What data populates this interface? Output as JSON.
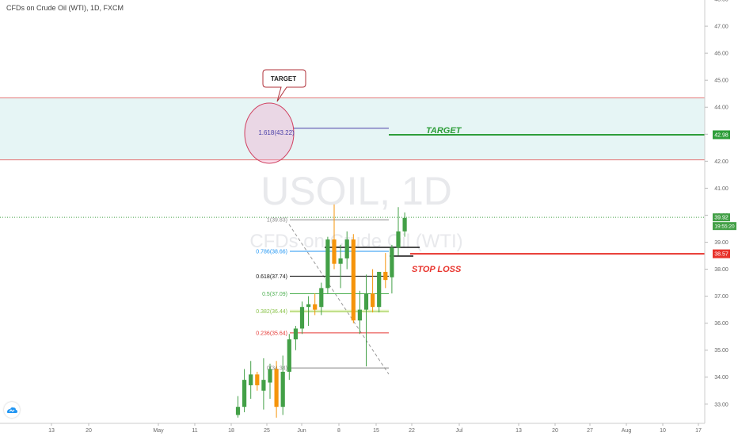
{
  "header": {
    "title": "CFDs on Crude Oil (WTI), 1D, FXCM"
  },
  "watermark": {
    "symbol": "USOIL, 1D",
    "description": "CFDs on Crude Oil (WTI)"
  },
  "price_axis": {
    "ticks": [
      "48.00",
      "47.00",
      "46.00",
      "45.00",
      "44.00",
      "43.00",
      "42.00",
      "41.00",
      "40.00",
      "39.00",
      "38.00",
      "37.00",
      "36.00",
      "35.00",
      "34.00",
      "33.00"
    ],
    "target_badge": "42.98",
    "last_price_badge": "39.92",
    "countdown_badge": "19:55:20",
    "stop_badge": "38.57"
  },
  "time_axis": {
    "ticks": [
      "13",
      "20",
      "May",
      "11",
      "18",
      "25",
      "Jun",
      "8",
      "15",
      "22",
      "Jul",
      "13",
      "20",
      "27",
      "Aug",
      "10",
      "17"
    ]
  },
  "annotations": {
    "target_callout": "TARGET",
    "target_line_label": "TARGET",
    "stop_loss_label": "STOP LOSS",
    "fib_ext": "1.618(43.22)",
    "fib_levels": [
      "1(39.83)",
      "0.786(38.66)",
      "0.618(37.74)",
      "0.5(37.09)",
      "0.382(36.44)",
      "0.236(35.64)",
      "0(34.34)"
    ]
  },
  "colors": {
    "up": "#43a047",
    "down": "#f5940b",
    "target_green": "#2e9e3a",
    "stop_red": "#e8322b",
    "zone_fill": "#e6f5f5",
    "zone_border": "#e57373"
  },
  "chart_data": {
    "type": "candlestick",
    "title": "CFDs on Crude Oil (WTI), 1D, FXCM",
    "y_range": [
      32.7,
      48.1
    ],
    "levels": {
      "target": 42.98,
      "last_price": 39.92,
      "stop_loss": 38.57,
      "fib_1_618": 43.22,
      "zone_top": 44.35,
      "zone_bottom": 42.05
    },
    "fibonacci": [
      {
        "ratio": "1",
        "price": 39.83
      },
      {
        "ratio": "0.786",
        "price": 38.66
      },
      {
        "ratio": "0.618",
        "price": 37.74
      },
      {
        "ratio": "0.5",
        "price": 37.09
      },
      {
        "ratio": "0.382",
        "price": 36.44
      },
      {
        "ratio": "0.236",
        "price": 35.64
      },
      {
        "ratio": "0",
        "price": 34.34
      }
    ],
    "candles": [
      {
        "o": 32.6,
        "h": 33.3,
        "l": 32.5,
        "c": 32.9
      },
      {
        "o": 32.9,
        "h": 34.3,
        "l": 32.7,
        "c": 33.9
      },
      {
        "o": 33.7,
        "h": 34.6,
        "l": 33.2,
        "c": 34.1
      },
      {
        "o": 34.1,
        "h": 34.2,
        "l": 33.5,
        "c": 33.7
      },
      {
        "o": 33.5,
        "h": 34.7,
        "l": 32.8,
        "c": 33.9
      },
      {
        "o": 33.8,
        "h": 34.5,
        "l": 33.2,
        "c": 34.3
      },
      {
        "o": 34.3,
        "h": 34.6,
        "l": 32.5,
        "c": 32.9
      },
      {
        "o": 32.9,
        "h": 34.8,
        "l": 32.6,
        "c": 34.2
      },
      {
        "o": 34.2,
        "h": 35.6,
        "l": 33.9,
        "c": 35.4
      },
      {
        "o": 35.4,
        "h": 35.9,
        "l": 35.0,
        "c": 35.8
      },
      {
        "o": 35.8,
        "h": 36.8,
        "l": 35.6,
        "c": 36.6
      },
      {
        "o": 36.6,
        "h": 37.0,
        "l": 35.9,
        "c": 36.7
      },
      {
        "o": 36.7,
        "h": 37.1,
        "l": 36.3,
        "c": 36.5
      },
      {
        "o": 36.6,
        "h": 37.5,
        "l": 36.3,
        "c": 37.3
      },
      {
        "o": 37.3,
        "h": 39.2,
        "l": 37.1,
        "c": 39.1
      },
      {
        "o": 39.1,
        "h": 40.4,
        "l": 38.0,
        "c": 38.2
      },
      {
        "o": 38.2,
        "h": 38.9,
        "l": 37.3,
        "c": 38.4
      },
      {
        "o": 38.4,
        "h": 39.4,
        "l": 38.0,
        "c": 39.1
      },
      {
        "o": 39.1,
        "h": 39.3,
        "l": 36.0,
        "c": 36.1
      },
      {
        "o": 36.1,
        "h": 37.2,
        "l": 35.6,
        "c": 36.5
      },
      {
        "o": 36.5,
        "h": 37.8,
        "l": 34.4,
        "c": 37.1
      },
      {
        "o": 37.1,
        "h": 38.0,
        "l": 36.4,
        "c": 36.6
      },
      {
        "o": 36.6,
        "h": 37.9,
        "l": 36.4,
        "c": 37.9
      },
      {
        "o": 37.9,
        "h": 38.6,
        "l": 37.3,
        "c": 37.6
      },
      {
        "o": 37.7,
        "h": 38.9,
        "l": 37.1,
        "c": 38.8
      },
      {
        "o": 38.8,
        "h": 40.3,
        "l": 38.5,
        "c": 39.4
      },
      {
        "o": 39.4,
        "h": 40.1,
        "l": 39.2,
        "c": 39.9
      }
    ]
  }
}
